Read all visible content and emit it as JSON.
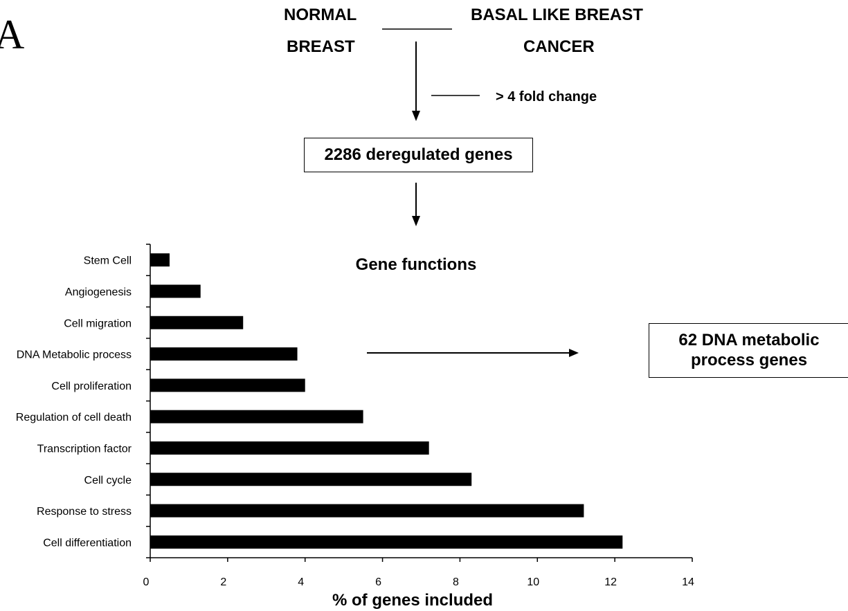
{
  "panel_label": "A",
  "flow": {
    "left_line1": "NORMAL",
    "left_line2": "BREAST",
    "right_line1": "BASAL LIKE BREAST",
    "right_line2": "CANCER",
    "filter_label": "> 4 fold change",
    "deregulated_box": "2286 deregulated genes",
    "result_box_line1": "62 DNA metabolic",
    "result_box_line2": "process genes"
  },
  "chart_data": {
    "type": "bar",
    "orientation": "horizontal",
    "title": "Gene functions",
    "xlabel": "% of genes included",
    "ylabel": "",
    "xlim": [
      0,
      14
    ],
    "xticks": [
      0,
      2,
      4,
      6,
      8,
      10,
      12,
      14
    ],
    "categories": [
      "Stem Cell",
      "Angiogenesis",
      "Cell migration",
      "DNA Metabolic process",
      "Cell proliferation",
      "Regulation of cell death",
      "Transcription factor",
      "Cell cycle",
      "Response to stress",
      "Cell differentiation"
    ],
    "values": [
      0.5,
      1.3,
      2.4,
      3.8,
      4.0,
      5.5,
      7.2,
      8.3,
      11.2,
      12.2
    ],
    "bar_color": "#000000",
    "grid": false
  }
}
